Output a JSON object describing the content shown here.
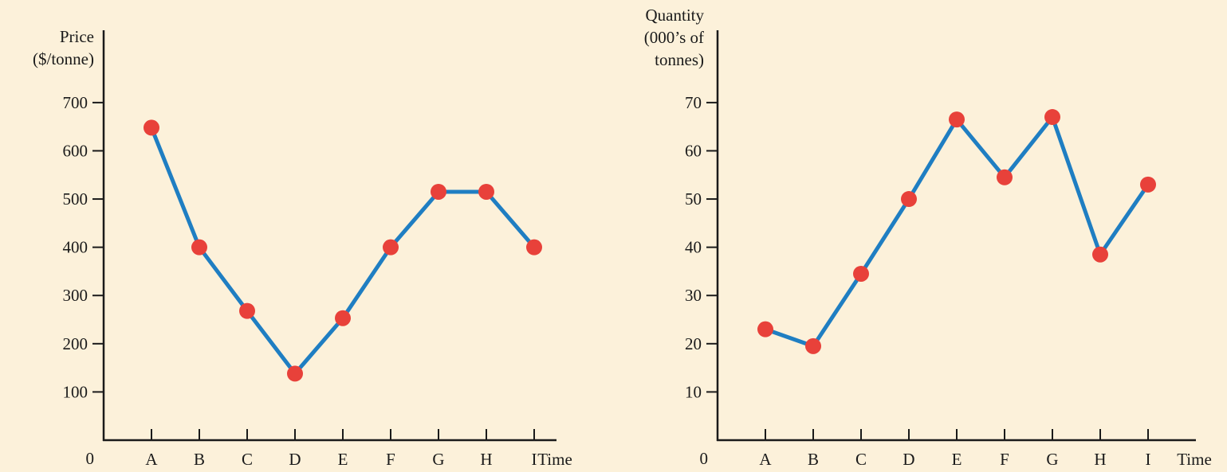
{
  "colors": {
    "background": "#fcf1da",
    "line": "#1f7ec2",
    "marker": "#e8413a",
    "axis": "#1a1a1a"
  },
  "chart_data": [
    {
      "type": "line",
      "ylabel_lines": [
        "Price",
        "($/tonne)"
      ],
      "xlabel": "Time",
      "origin_label": "0",
      "categories": [
        "A",
        "B",
        "C",
        "D",
        "E",
        "F",
        "G",
        "H",
        "I"
      ],
      "yticks": [
        100,
        200,
        300,
        400,
        500,
        600,
        700
      ],
      "ylim": [
        0,
        850
      ],
      "values": [
        648,
        400,
        268,
        138,
        253,
        400,
        515,
        515,
        400
      ],
      "grid": false
    },
    {
      "type": "line",
      "ylabel_lines": [
        "Quantity",
        "(000’s of",
        "tonnes)"
      ],
      "xlabel": "Time",
      "origin_label": "0",
      "categories": [
        "A",
        "B",
        "C",
        "D",
        "E",
        "F",
        "G",
        "H",
        "I"
      ],
      "yticks": [
        10,
        20,
        30,
        40,
        50,
        60,
        70
      ],
      "ylim": [
        0,
        85
      ],
      "values": [
        23,
        19.5,
        34.5,
        50,
        66.5,
        54.5,
        67,
        38.5,
        53
      ],
      "grid": false
    }
  ]
}
